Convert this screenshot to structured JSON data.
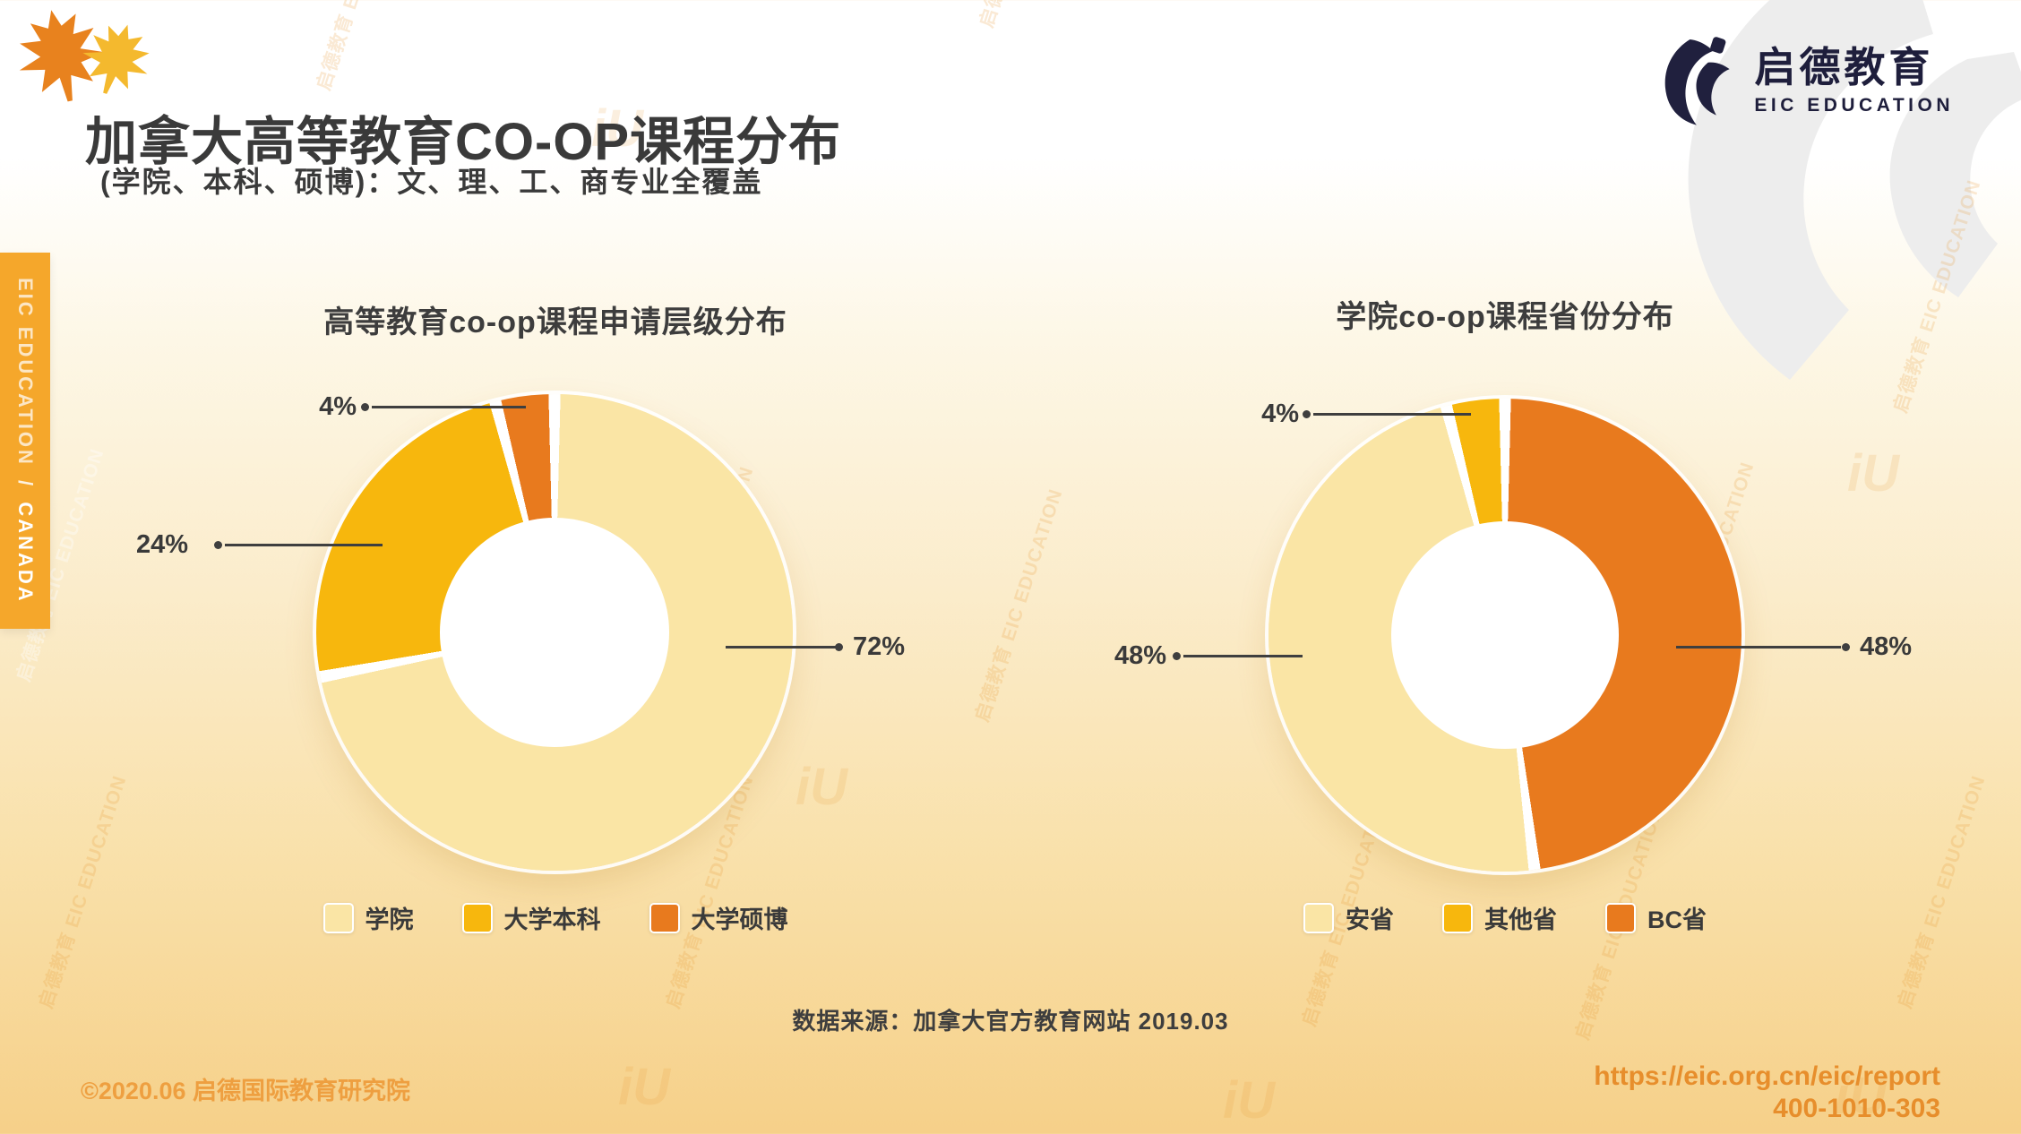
{
  "page": {
    "title": "加拿大高等教育CO-OP课程分布",
    "subtitle": "(学院、本科、硕博)：文、理、工、商专业全覆盖"
  },
  "brand": {
    "logo_cn": "启德教育",
    "logo_en": "EIC EDUCATION"
  },
  "sidebar_badge": {
    "text_en": "EIC EDUCATION",
    "separator": "/",
    "text_country": "CANADA"
  },
  "watermark": {
    "text": "启德教育 EIC EDUCATION",
    "mark": "iU"
  },
  "chart_data": [
    {
      "type": "donut",
      "title": "高等教育co-op课程申请层级分布",
      "segments": [
        {
          "label": "学院",
          "value": 72,
          "pct": "72%",
          "color": "#FAE5A5"
        },
        {
          "label": "大学本科",
          "value": 24,
          "pct": "24%",
          "color": "#F7B70D"
        },
        {
          "label": "大学硕博",
          "value": 4,
          "pct": "4%",
          "color": "#E87A1E"
        }
      ],
      "draw_sequence": [
        0,
        1,
        2
      ],
      "start_angle": "12-oclock",
      "direction": "clockwise",
      "hole_ratio": 0.48,
      "legend_position": "bottom"
    },
    {
      "type": "donut",
      "title": "学院co-op课程省份分布",
      "segments": [
        {
          "label": "安省",
          "value": 48,
          "pct": "48%",
          "color": "#FAE5A5"
        },
        {
          "label": "其他省",
          "value": 4,
          "pct": "4%",
          "color": "#F7B70D"
        },
        {
          "label": "BC省",
          "value": 48,
          "pct": "48%",
          "color": "#E87A1E"
        }
      ],
      "draw_sequence": [
        2,
        0,
        1
      ],
      "start_angle": "12-oclock",
      "direction": "clockwise",
      "hole_ratio": 0.48,
      "legend_position": "bottom"
    }
  ],
  "footer": {
    "source": "数据来源：加拿大官方教育网站 2019.03",
    "copyright": "©2020.06 启德国际教育研究院",
    "report_url": "https://eic.org.cn/eic/report",
    "phone": "400-1010-303"
  },
  "colors": {
    "segment_light": "#FAE5A5",
    "segment_gold": "#F7B70D",
    "segment_orange": "#E87A1E",
    "accent_badge": "#F5A72B",
    "brand_navy": "#1E1E3C",
    "footer_orange": "#E78E2C"
  }
}
